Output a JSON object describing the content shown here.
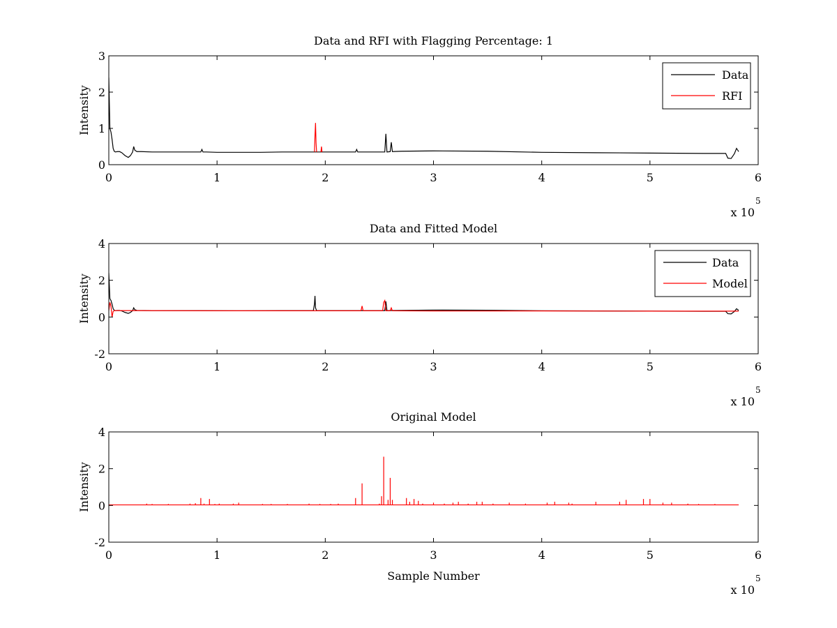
{
  "figure": {
    "background": "#ffffff",
    "colors": {
      "data": "#000000",
      "rfi": "#ff0000",
      "model": "#ff0000"
    }
  },
  "chart_data": [
    {
      "type": "line",
      "title": "Data and RFI with Flagging Percentage: 1",
      "xlabel": "",
      "ylabel": "Intensity",
      "xlim": [
        0,
        600000
      ],
      "ylim": [
        0,
        3
      ],
      "xticks": [
        0,
        1,
        2,
        3,
        4,
        5,
        6
      ],
      "yticks": [
        0,
        1,
        2,
        3
      ],
      "x_multiplier": "x 10",
      "x_multiplier_exp": "5",
      "legend": {
        "position": "top-right",
        "entries": [
          "Data",
          "RFI"
        ]
      },
      "series": [
        {
          "name": "Data",
          "color": "#000000",
          "x": [
            0,
            1000,
            2000,
            3000,
            4000,
            5000,
            6000,
            8000,
            10000,
            12000,
            15000,
            18000,
            20000,
            22000,
            23000,
            24000,
            26000,
            30000,
            40000,
            50000,
            60000,
            70000,
            80000,
            85000,
            86000,
            87000,
            90000,
            100000,
            120000,
            140000,
            160000,
            180000,
            190000,
            200000,
            220000,
            228000,
            229000,
            230000,
            240000,
            255000,
            256000,
            257000,
            260000,
            261000,
            262000,
            270000,
            300000,
            350000,
            400000,
            450000,
            500000,
            550000,
            570000,
            572000,
            575000,
            578000,
            580000,
            582000
          ],
          "y": [
            2.4,
            1.0,
            0.9,
            0.7,
            0.45,
            0.37,
            0.35,
            0.36,
            0.36,
            0.33,
            0.25,
            0.2,
            0.25,
            0.35,
            0.5,
            0.4,
            0.36,
            0.36,
            0.35,
            0.35,
            0.35,
            0.35,
            0.35,
            0.35,
            0.42,
            0.35,
            0.35,
            0.34,
            0.34,
            0.34,
            0.35,
            0.35,
            0.35,
            0.35,
            0.35,
            0.35,
            0.42,
            0.35,
            0.35,
            0.35,
            0.85,
            0.35,
            0.36,
            0.62,
            0.36,
            0.37,
            0.38,
            0.37,
            0.34,
            0.33,
            0.32,
            0.31,
            0.31,
            0.18,
            0.17,
            0.3,
            0.45,
            0.36
          ]
        },
        {
          "name": "RFI",
          "color": "#ff0000",
          "x": [
            190000,
            190500,
            191000,
            191500,
            192000
          ],
          "y": [
            0.35,
            0.8,
            1.15,
            0.6,
            0.35
          ]
        },
        {
          "color": "#ff0000",
          "x": [
            196000,
            196500,
            197000
          ],
          "y": [
            0.35,
            0.5,
            0.35
          ]
        }
      ]
    },
    {
      "type": "line",
      "title": "Data and Fitted Model",
      "xlabel": "",
      "ylabel": "Intensity",
      "xlim": [
        0,
        600000
      ],
      "ylim": [
        -2,
        4
      ],
      "xticks": [
        0,
        1,
        2,
        3,
        4,
        5,
        6
      ],
      "yticks": [
        -2,
        0,
        2,
        4
      ],
      "x_multiplier": "x 10",
      "x_multiplier_exp": "5",
      "legend": {
        "position": "top-right",
        "entries": [
          "Data",
          "Model"
        ]
      },
      "series": [
        {
          "name": "Data",
          "color": "#000000",
          "x": [
            0,
            1000,
            2000,
            3000,
            4000,
            5000,
            6000,
            8000,
            10000,
            12000,
            15000,
            18000,
            20000,
            22000,
            23000,
            24000,
            26000,
            40000,
            80000,
            120000,
            160000,
            189000,
            190000,
            190500,
            191000,
            192000,
            195000,
            200000,
            255000,
            256000,
            257000,
            300000,
            350000,
            400000,
            450000,
            500000,
            550000,
            570000,
            572000,
            575000,
            578000,
            580000,
            582000
          ],
          "y": [
            2.4,
            1.0,
            0.9,
            0.7,
            0.45,
            0.37,
            0.35,
            0.36,
            0.36,
            0.33,
            0.25,
            0.2,
            0.25,
            0.35,
            0.5,
            0.4,
            0.36,
            0.35,
            0.35,
            0.34,
            0.35,
            0.35,
            0.7,
            1.15,
            0.5,
            0.35,
            0.35,
            0.35,
            0.35,
            0.85,
            0.35,
            0.38,
            0.37,
            0.34,
            0.33,
            0.32,
            0.31,
            0.31,
            0.18,
            0.17,
            0.3,
            0.45,
            0.36
          ]
        },
        {
          "name": "Model",
          "color": "#ff0000",
          "x": [
            0,
            1000,
            2000,
            3000,
            4000,
            5000,
            6000,
            20000,
            100000,
            200000,
            233000,
            234000,
            235000,
            240000,
            253000,
            254000,
            255000,
            256000,
            260000,
            261000,
            262000,
            300000,
            400000,
            500000,
            582000
          ],
          "y": [
            0.35,
            0.8,
            0.6,
            0.0,
            0.3,
            0.35,
            0.35,
            0.35,
            0.34,
            0.34,
            0.34,
            0.6,
            0.34,
            0.34,
            0.34,
            0.8,
            0.9,
            0.34,
            0.34,
            0.5,
            0.34,
            0.33,
            0.33,
            0.32,
            0.32
          ]
        }
      ]
    },
    {
      "type": "line",
      "title": "Original Model",
      "xlabel": "Sample Number",
      "ylabel": "Intensity",
      "xlim": [
        0,
        600000
      ],
      "ylim": [
        -2,
        4
      ],
      "xticks": [
        0,
        1,
        2,
        3,
        4,
        5,
        6
      ],
      "yticks": [
        -2,
        0,
        2,
        4
      ],
      "x_multiplier": "x 10",
      "x_multiplier_exp": "5",
      "legend": null,
      "series": [
        {
          "color": "#ff0000",
          "baseline": 0.03,
          "x_end": 582000,
          "spikes": [
            [
              35000,
              0.1
            ],
            [
              40000,
              0.08
            ],
            [
              55000,
              0.08
            ],
            [
              60000,
              0.05
            ],
            [
              75000,
              0.1
            ],
            [
              80000,
              0.12
            ],
            [
              85000,
              0.4
            ],
            [
              88000,
              0.1
            ],
            [
              93000,
              0.35
            ],
            [
              98000,
              0.08
            ],
            [
              102000,
              0.1
            ],
            [
              115000,
              0.1
            ],
            [
              120000,
              0.15
            ],
            [
              142000,
              0.08
            ],
            [
              150000,
              0.08
            ],
            [
              165000,
              0.08
            ],
            [
              185000,
              0.1
            ],
            [
              195000,
              0.08
            ],
            [
              205000,
              0.08
            ],
            [
              212000,
              0.1
            ],
            [
              228000,
              0.4
            ],
            [
              234000,
              1.2
            ],
            [
              250000,
              0.1
            ],
            [
              252000,
              0.5
            ],
            [
              254000,
              2.65
            ],
            [
              258000,
              0.3
            ],
            [
              260000,
              1.5
            ],
            [
              262000,
              0.3
            ],
            [
              275000,
              0.4
            ],
            [
              278000,
              0.2
            ],
            [
              282000,
              0.35
            ],
            [
              286000,
              0.25
            ],
            [
              290000,
              0.1
            ],
            [
              300000,
              0.15
            ],
            [
              310000,
              0.1
            ],
            [
              318000,
              0.15
            ],
            [
              323000,
              0.2
            ],
            [
              332000,
              0.1
            ],
            [
              340000,
              0.2
            ],
            [
              345000,
              0.2
            ],
            [
              355000,
              0.1
            ],
            [
              370000,
              0.15
            ],
            [
              385000,
              0.1
            ],
            [
              405000,
              0.15
            ],
            [
              412000,
              0.2
            ],
            [
              425000,
              0.15
            ],
            [
              428000,
              0.1
            ],
            [
              450000,
              0.2
            ],
            [
              472000,
              0.2
            ],
            [
              478000,
              0.3
            ],
            [
              494000,
              0.35
            ],
            [
              500000,
              0.35
            ],
            [
              512000,
              0.15
            ],
            [
              520000,
              0.15
            ],
            [
              535000,
              0.1
            ],
            [
              545000,
              0.08
            ],
            [
              560000,
              0.08
            ]
          ]
        }
      ]
    }
  ]
}
